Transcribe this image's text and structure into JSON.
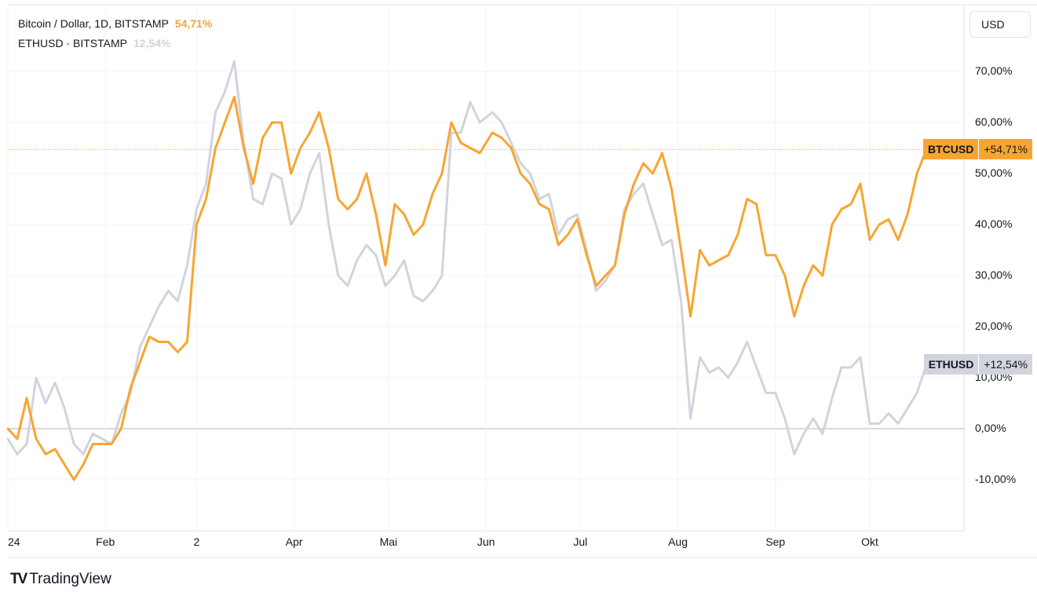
{
  "legend": {
    "btc_title": "Bitcoin / Dollar, 1D, BITSTAMP",
    "btc_pct": "54,71%",
    "eth_title": "ETHUSD · BITSTAMP",
    "eth_pct": "12,54%"
  },
  "currency_button": "USD",
  "brand": {
    "logo_text": "TV",
    "name": "TradingView"
  },
  "colors": {
    "btc": "#f7a531",
    "eth": "#d1d4dc",
    "grid": "#f0f3fa",
    "zero": "#b2b5be"
  },
  "tags": {
    "btc": {
      "symbol": "BTCUSD",
      "value": "+54,71%"
    },
    "eth": {
      "symbol": "ETHUSD",
      "value": "+12,54%"
    }
  },
  "chart_data": {
    "type": "line",
    "y_unit": "percent change",
    "ylim": [
      -20,
      80
    ],
    "y_ticks": [
      {
        "value": 70,
        "label": "70,00%"
      },
      {
        "value": 60,
        "label": "60,00%"
      },
      {
        "value": 50,
        "label": "50,00%"
      },
      {
        "value": 40,
        "label": "40,00%"
      },
      {
        "value": 30,
        "label": "30,00%"
      },
      {
        "value": 20,
        "label": "20,00%"
      },
      {
        "value": 10,
        "label": "10,00%"
      },
      {
        "value": 0,
        "label": "0,00%"
      },
      {
        "value": -10,
        "label": "-10,00%"
      }
    ],
    "x_ticks": [
      {
        "date": "2024-01-01",
        "label": "24"
      },
      {
        "date": "2024-02-01",
        "label": "Feb"
      },
      {
        "date": "2024-03-01",
        "label": "2"
      },
      {
        "date": "2024-04-01",
        "label": "Apr"
      },
      {
        "date": "2024-05-01",
        "label": "Mai"
      },
      {
        "date": "2024-06-01",
        "label": "Jun"
      },
      {
        "date": "2024-07-01",
        "label": "Jul"
      },
      {
        "date": "2024-08-01",
        "label": "Aug"
      },
      {
        "date": "2024-09-01",
        "label": "Sep"
      },
      {
        "date": "2024-10-01",
        "label": "Okt"
      }
    ],
    "grid": true,
    "series": [
      {
        "name": "BTCUSD",
        "color": "#f7a531",
        "points": [
          [
            "2024-01-01",
            0
          ],
          [
            "2024-01-04",
            -2
          ],
          [
            "2024-01-07",
            6
          ],
          [
            "2024-01-10",
            -2
          ],
          [
            "2024-01-13",
            -5
          ],
          [
            "2024-01-16",
            -4
          ],
          [
            "2024-01-19",
            -7
          ],
          [
            "2024-01-22",
            -10
          ],
          [
            "2024-01-25",
            -7
          ],
          [
            "2024-01-28",
            -3
          ],
          [
            "2024-01-31",
            -3
          ],
          [
            "2024-02-03",
            -3
          ],
          [
            "2024-02-06",
            0
          ],
          [
            "2024-02-09",
            8
          ],
          [
            "2024-02-12",
            13
          ],
          [
            "2024-02-15",
            18
          ],
          [
            "2024-02-18",
            17
          ],
          [
            "2024-02-21",
            17
          ],
          [
            "2024-02-24",
            15
          ],
          [
            "2024-02-27",
            17
          ],
          [
            "2024-03-01",
            40
          ],
          [
            "2024-03-04",
            45
          ],
          [
            "2024-03-07",
            55
          ],
          [
            "2024-03-10",
            60
          ],
          [
            "2024-03-13",
            65
          ],
          [
            "2024-03-16",
            55
          ],
          [
            "2024-03-19",
            48
          ],
          [
            "2024-03-22",
            57
          ],
          [
            "2024-03-25",
            60
          ],
          [
            "2024-03-28",
            60
          ],
          [
            "2024-03-31",
            50
          ],
          [
            "2024-04-03",
            55
          ],
          [
            "2024-04-06",
            58
          ],
          [
            "2024-04-09",
            62
          ],
          [
            "2024-04-12",
            55
          ],
          [
            "2024-04-15",
            45
          ],
          [
            "2024-04-18",
            43
          ],
          [
            "2024-04-21",
            45
          ],
          [
            "2024-04-24",
            50
          ],
          [
            "2024-04-27",
            42
          ],
          [
            "2024-04-30",
            32
          ],
          [
            "2024-05-03",
            44
          ],
          [
            "2024-05-06",
            42
          ],
          [
            "2024-05-09",
            38
          ],
          [
            "2024-05-12",
            40
          ],
          [
            "2024-05-15",
            46
          ],
          [
            "2024-05-18",
            50
          ],
          [
            "2024-05-21",
            60
          ],
          [
            "2024-05-24",
            56
          ],
          [
            "2024-05-27",
            55
          ],
          [
            "2024-05-30",
            54
          ],
          [
            "2024-06-03",
            58
          ],
          [
            "2024-06-06",
            57
          ],
          [
            "2024-06-09",
            55
          ],
          [
            "2024-06-12",
            50
          ],
          [
            "2024-06-15",
            48
          ],
          [
            "2024-06-18",
            44
          ],
          [
            "2024-06-21",
            43
          ],
          [
            "2024-06-24",
            36
          ],
          [
            "2024-06-27",
            38
          ],
          [
            "2024-06-30",
            41
          ],
          [
            "2024-07-03",
            34
          ],
          [
            "2024-07-06",
            28
          ],
          [
            "2024-07-09",
            30
          ],
          [
            "2024-07-12",
            32
          ],
          [
            "2024-07-15",
            42
          ],
          [
            "2024-07-18",
            48
          ],
          [
            "2024-07-21",
            52
          ],
          [
            "2024-07-24",
            50
          ],
          [
            "2024-07-27",
            54
          ],
          [
            "2024-07-30",
            47
          ],
          [
            "2024-08-02",
            35
          ],
          [
            "2024-08-05",
            22
          ],
          [
            "2024-08-08",
            35
          ],
          [
            "2024-08-11",
            32
          ],
          [
            "2024-08-14",
            33
          ],
          [
            "2024-08-17",
            34
          ],
          [
            "2024-08-20",
            38
          ],
          [
            "2024-08-23",
            45
          ],
          [
            "2024-08-26",
            44
          ],
          [
            "2024-08-29",
            34
          ],
          [
            "2024-09-01",
            34
          ],
          [
            "2024-09-04",
            30
          ],
          [
            "2024-09-07",
            22
          ],
          [
            "2024-09-10",
            28
          ],
          [
            "2024-09-13",
            32
          ],
          [
            "2024-09-16",
            30
          ],
          [
            "2024-09-19",
            40
          ],
          [
            "2024-09-22",
            43
          ],
          [
            "2024-09-25",
            44
          ],
          [
            "2024-09-28",
            48
          ],
          [
            "2024-10-01",
            37
          ],
          [
            "2024-10-04",
            40
          ],
          [
            "2024-10-07",
            41
          ],
          [
            "2024-10-10",
            37
          ],
          [
            "2024-10-13",
            42
          ],
          [
            "2024-10-16",
            50
          ],
          [
            "2024-10-19",
            54.71
          ]
        ]
      },
      {
        "name": "ETHUSD",
        "color": "#d1d4dc",
        "points": [
          [
            "2024-01-01",
            -2
          ],
          [
            "2024-01-04",
            -5
          ],
          [
            "2024-01-07",
            -3
          ],
          [
            "2024-01-10",
            10
          ],
          [
            "2024-01-13",
            5
          ],
          [
            "2024-01-16",
            9
          ],
          [
            "2024-01-19",
            4
          ],
          [
            "2024-01-22",
            -3
          ],
          [
            "2024-01-25",
            -5
          ],
          [
            "2024-01-28",
            -1
          ],
          [
            "2024-01-31",
            -2
          ],
          [
            "2024-02-03",
            -3
          ],
          [
            "2024-02-06",
            3
          ],
          [
            "2024-02-09",
            7
          ],
          [
            "2024-02-12",
            16
          ],
          [
            "2024-02-15",
            20
          ],
          [
            "2024-02-18",
            24
          ],
          [
            "2024-02-21",
            27
          ],
          [
            "2024-02-24",
            25
          ],
          [
            "2024-02-27",
            32
          ],
          [
            "2024-03-01",
            43
          ],
          [
            "2024-03-04",
            48
          ],
          [
            "2024-03-07",
            62
          ],
          [
            "2024-03-10",
            66
          ],
          [
            "2024-03-13",
            72
          ],
          [
            "2024-03-16",
            56
          ],
          [
            "2024-03-19",
            45
          ],
          [
            "2024-03-22",
            44
          ],
          [
            "2024-03-25",
            50
          ],
          [
            "2024-03-28",
            49
          ],
          [
            "2024-03-31",
            40
          ],
          [
            "2024-04-03",
            43
          ],
          [
            "2024-04-06",
            50
          ],
          [
            "2024-04-09",
            54
          ],
          [
            "2024-04-12",
            40
          ],
          [
            "2024-04-15",
            30
          ],
          [
            "2024-04-18",
            28
          ],
          [
            "2024-04-21",
            33
          ],
          [
            "2024-04-24",
            36
          ],
          [
            "2024-04-27",
            34
          ],
          [
            "2024-04-30",
            28
          ],
          [
            "2024-05-03",
            30
          ],
          [
            "2024-05-06",
            33
          ],
          [
            "2024-05-09",
            26
          ],
          [
            "2024-05-12",
            25
          ],
          [
            "2024-05-15",
            27
          ],
          [
            "2024-05-18",
            30
          ],
          [
            "2024-05-21",
            58
          ],
          [
            "2024-05-24",
            58
          ],
          [
            "2024-05-27",
            64
          ],
          [
            "2024-05-30",
            60
          ],
          [
            "2024-06-03",
            62
          ],
          [
            "2024-06-06",
            60
          ],
          [
            "2024-06-09",
            56
          ],
          [
            "2024-06-12",
            52
          ],
          [
            "2024-06-15",
            50
          ],
          [
            "2024-06-18",
            45
          ],
          [
            "2024-06-21",
            46
          ],
          [
            "2024-06-24",
            38
          ],
          [
            "2024-06-27",
            41
          ],
          [
            "2024-06-30",
            42
          ],
          [
            "2024-07-03",
            35
          ],
          [
            "2024-07-06",
            27
          ],
          [
            "2024-07-09",
            29
          ],
          [
            "2024-07-12",
            32
          ],
          [
            "2024-07-15",
            43
          ],
          [
            "2024-07-18",
            46
          ],
          [
            "2024-07-21",
            48
          ],
          [
            "2024-07-24",
            42
          ],
          [
            "2024-07-27",
            36
          ],
          [
            "2024-07-30",
            37
          ],
          [
            "2024-08-02",
            25
          ],
          [
            "2024-08-05",
            2
          ],
          [
            "2024-08-08",
            14
          ],
          [
            "2024-08-11",
            11
          ],
          [
            "2024-08-14",
            12
          ],
          [
            "2024-08-17",
            10
          ],
          [
            "2024-08-20",
            13
          ],
          [
            "2024-08-23",
            17
          ],
          [
            "2024-08-26",
            12
          ],
          [
            "2024-08-29",
            7
          ],
          [
            "2024-09-01",
            7
          ],
          [
            "2024-09-04",
            2
          ],
          [
            "2024-09-07",
            -5
          ],
          [
            "2024-09-10",
            -1
          ],
          [
            "2024-09-13",
            2
          ],
          [
            "2024-09-16",
            -1
          ],
          [
            "2024-09-19",
            6
          ],
          [
            "2024-09-22",
            12
          ],
          [
            "2024-09-25",
            12
          ],
          [
            "2024-09-28",
            14
          ],
          [
            "2024-10-01",
            1
          ],
          [
            "2024-10-04",
            1
          ],
          [
            "2024-10-07",
            3
          ],
          [
            "2024-10-10",
            1
          ],
          [
            "2024-10-13",
            4
          ],
          [
            "2024-10-16",
            7
          ],
          [
            "2024-10-19",
            12.54
          ]
        ]
      }
    ]
  }
}
